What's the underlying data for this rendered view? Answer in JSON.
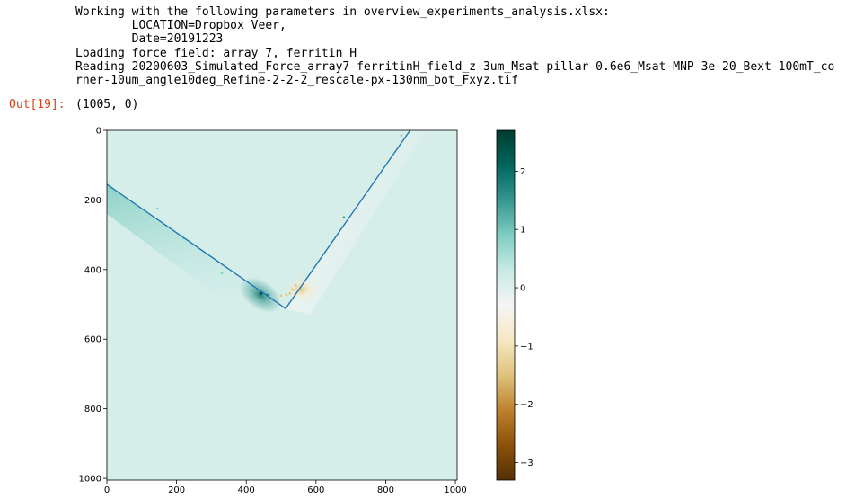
{
  "output": {
    "stdout_lines": [
      "Working with the following parameters in overview_experiments_analysis.xlsx:",
      "        LOCATION=Dropbox Veer,",
      "        Date=20191223",
      "Loading force field: array 7, ferritin H",
      "Reading 20200603_Simulated_Force_array7-ferritinH_field_z-3um_Msat-pillar-0.6e6_Msat-MNP-3e-20_Bext-100mT_co",
      "rner-10um_angle10deg_Refine-2-2-2_rescale-px-130nm_bot_Fxyz.tif"
    ],
    "prompt_label": "Out[19]:",
    "result_text": "(1005, 0)"
  },
  "colors": {
    "prompt": "#d84315",
    "line": "#1f77b4",
    "colormap": [
      "#543005",
      "#8c510a",
      "#bf812d",
      "#dfc27d",
      "#f6e8c3",
      "#f5f5f5",
      "#c7eae5",
      "#80cdc1",
      "#35978f",
      "#01665e",
      "#003c30"
    ]
  },
  "chart_data": {
    "type": "heatmap",
    "colormap": "BrBG",
    "xlim": [
      0,
      1005
    ],
    "ylim": [
      1005,
      0
    ],
    "xticks": [
      0,
      200,
      400,
      600,
      800,
      1000
    ],
    "yticks": [
      0,
      200,
      400,
      600,
      800,
      1000
    ],
    "colorbar": {
      "range": [
        -3.3,
        2.7
      ],
      "ticks": [
        2,
        1,
        0,
        -1,
        -2,
        -3
      ]
    },
    "outline": {
      "x": [
        0,
        513,
        870
      ],
      "y": [
        155,
        512,
        0
      ]
    },
    "points": [
      {
        "x": 443,
        "y": 468,
        "v": 2.6
      },
      {
        "x": 460,
        "y": 473,
        "v": 1.8
      },
      {
        "x": 500,
        "y": 475,
        "v": -1.2
      },
      {
        "x": 515,
        "y": 473,
        "v": -1.4
      },
      {
        "x": 525,
        "y": 468,
        "v": -1.5
      },
      {
        "x": 533,
        "y": 457,
        "v": -1.6
      },
      {
        "x": 542,
        "y": 445,
        "v": -1.3
      },
      {
        "x": 560,
        "y": 420,
        "v": -0.9
      },
      {
        "x": 610,
        "y": 350,
        "v": -1.0
      },
      {
        "x": 680,
        "y": 250,
        "v": 1.2
      },
      {
        "x": 720,
        "y": 200,
        "v": -0.7
      },
      {
        "x": 770,
        "y": 120,
        "v": -0.9
      },
      {
        "x": 800,
        "y": 80,
        "v": -0.8
      },
      {
        "x": 845,
        "y": 15,
        "v": 1.1
      },
      {
        "x": 145,
        "y": 225,
        "v": 0.8
      },
      {
        "x": 220,
        "y": 310,
        "v": 0.7
      },
      {
        "x": 330,
        "y": 410,
        "v": 0.9
      }
    ]
  }
}
